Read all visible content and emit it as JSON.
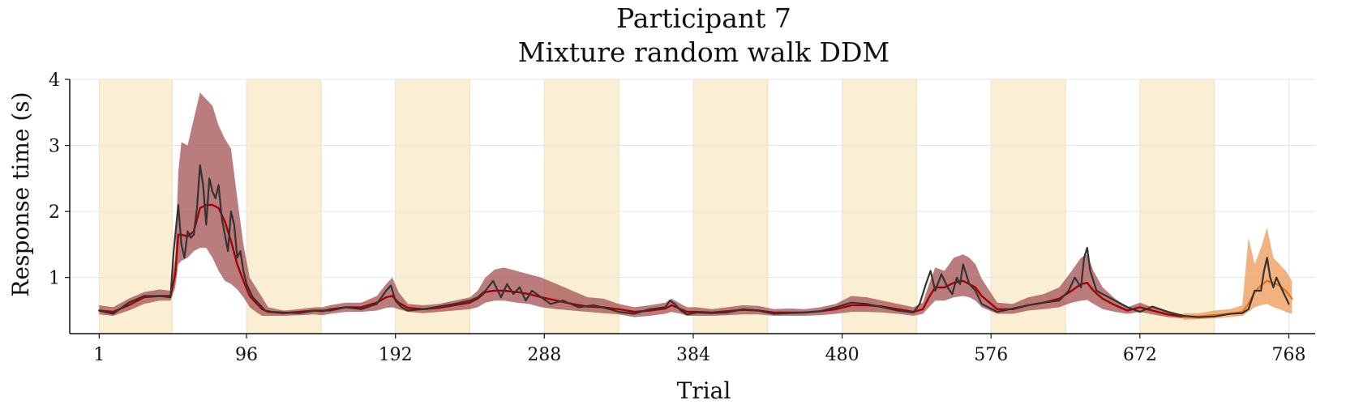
{
  "chart_data": {
    "type": "line",
    "title": [
      "Participant 7",
      "Mixture random walk DDM"
    ],
    "xlabel": "Trial",
    "ylabel": "Response time (s)",
    "xlim": [
      -18,
      785
    ],
    "ylim": [
      0.15,
      4.0
    ],
    "x_ticks": [
      1,
      96,
      192,
      288,
      384,
      480,
      576,
      672,
      768
    ],
    "y_ticks": [
      1,
      2,
      3,
      4
    ],
    "grid": true,
    "shaded_blocks": [
      [
        1,
        48
      ],
      [
        96,
        144
      ],
      [
        192,
        240
      ],
      [
        288,
        336
      ],
      [
        384,
        432
      ],
      [
        480,
        528
      ],
      [
        576,
        624
      ],
      [
        672,
        720
      ]
    ],
    "colors": {
      "block_shading": "#fbefd3",
      "fit_band": "#a35050",
      "fit_mean": "#a60000",
      "observed": "#333333",
      "prediction_band": "#f0a46a",
      "prediction_mean": "#e8731c",
      "grid": "#e6e6e6"
    },
    "series": [
      {
        "kind": "band",
        "color_key": "fit_band",
        "x": [
          1,
          10,
          20,
          30,
          40,
          47,
          50,
          52,
          54,
          58,
          62,
          66,
          70,
          74,
          78,
          82,
          86,
          90,
          94,
          98,
          102,
          106,
          110,
          120,
          130,
          140,
          145,
          150,
          160,
          170,
          180,
          186,
          190,
          194,
          200,
          210,
          220,
          230,
          240,
          245,
          250,
          256,
          262,
          270,
          278,
          286,
          296,
          306,
          316,
          326,
          336,
          346,
          356,
          366,
          370,
          376,
          380,
          386,
          396,
          406,
          416,
          426,
          436,
          446,
          456,
          466,
          476,
          486,
          496,
          506,
          516,
          526,
          532,
          536,
          540,
          546,
          552,
          558,
          562,
          566,
          570,
          580,
          590,
          600,
          610,
          620,
          628,
          634,
          638,
          642,
          648,
          656,
          664,
          672,
          680,
          690,
          700,
          710
        ],
        "upper": [
          0.58,
          0.55,
          0.68,
          0.78,
          0.82,
          0.8,
          1.3,
          2.6,
          3.05,
          3.0,
          3.4,
          3.8,
          3.7,
          3.6,
          3.3,
          3.1,
          2.95,
          2.2,
          1.5,
          1.0,
          0.85,
          0.7,
          0.55,
          0.5,
          0.52,
          0.55,
          0.55,
          0.58,
          0.62,
          0.62,
          0.72,
          0.9,
          1.0,
          0.78,
          0.6,
          0.58,
          0.6,
          0.65,
          0.7,
          0.8,
          1.0,
          1.12,
          1.15,
          1.1,
          1.05,
          1.0,
          0.9,
          0.8,
          0.7,
          0.68,
          0.6,
          0.55,
          0.58,
          0.62,
          0.68,
          0.6,
          0.55,
          0.55,
          0.52,
          0.55,
          0.58,
          0.57,
          0.52,
          0.53,
          0.52,
          0.55,
          0.6,
          0.72,
          0.7,
          0.65,
          0.6,
          0.55,
          0.62,
          0.9,
          1.15,
          1.1,
          1.3,
          1.35,
          1.3,
          1.2,
          0.98,
          0.62,
          0.6,
          0.7,
          0.75,
          0.85,
          1.1,
          1.3,
          1.35,
          1.1,
          0.85,
          0.68,
          0.55,
          0.62,
          0.55,
          0.48,
          0.44,
          0.42
        ],
        "lower": [
          0.44,
          0.42,
          0.5,
          0.6,
          0.65,
          0.65,
          0.85,
          1.2,
          1.25,
          1.3,
          1.4,
          1.45,
          1.45,
          1.3,
          1.1,
          0.95,
          0.9,
          0.82,
          0.7,
          0.55,
          0.48,
          0.42,
          0.42,
          0.42,
          0.43,
          0.44,
          0.43,
          0.45,
          0.48,
          0.48,
          0.5,
          0.54,
          0.55,
          0.52,
          0.48,
          0.46,
          0.48,
          0.5,
          0.52,
          0.55,
          0.62,
          0.65,
          0.65,
          0.62,
          0.6,
          0.55,
          0.52,
          0.5,
          0.48,
          0.46,
          0.44,
          0.4,
          0.42,
          0.45,
          0.48,
          0.45,
          0.42,
          0.42,
          0.42,
          0.43,
          0.44,
          0.44,
          0.42,
          0.42,
          0.42,
          0.43,
          0.45,
          0.48,
          0.48,
          0.47,
          0.45,
          0.42,
          0.45,
          0.55,
          0.65,
          0.65,
          0.7,
          0.72,
          0.7,
          0.65,
          0.55,
          0.45,
          0.45,
          0.5,
          0.52,
          0.55,
          0.62,
          0.65,
          0.66,
          0.6,
          0.52,
          0.48,
          0.45,
          0.48,
          0.44,
          0.4,
          0.38,
          0.37
        ]
      },
      {
        "kind": "line",
        "color_key": "fit_mean",
        "x": [
          1,
          10,
          20,
          30,
          40,
          47,
          50,
          52,
          54,
          58,
          62,
          66,
          70,
          74,
          78,
          82,
          86,
          90,
          94,
          98,
          102,
          106,
          110,
          120,
          130,
          140,
          145,
          150,
          160,
          170,
          180,
          186,
          190,
          194,
          200,
          210,
          220,
          230,
          240,
          245,
          250,
          256,
          262,
          270,
          278,
          286,
          296,
          306,
          316,
          326,
          336,
          346,
          356,
          366,
          370,
          376,
          380,
          386,
          396,
          406,
          416,
          426,
          436,
          446,
          456,
          466,
          476,
          486,
          496,
          506,
          516,
          526,
          532,
          536,
          540,
          546,
          552,
          558,
          562,
          566,
          570,
          580,
          590,
          600,
          610,
          620,
          628,
          634,
          638,
          642,
          648,
          656,
          664,
          672,
          680,
          690,
          700,
          710
        ],
        "y": [
          0.5,
          0.48,
          0.58,
          0.7,
          0.72,
          0.72,
          1.05,
          1.65,
          1.65,
          1.62,
          1.7,
          2.05,
          2.1,
          2.1,
          2.05,
          1.85,
          1.55,
          1.2,
          0.95,
          0.72,
          0.62,
          0.52,
          0.48,
          0.46,
          0.48,
          0.5,
          0.49,
          0.52,
          0.55,
          0.55,
          0.62,
          0.7,
          0.72,
          0.62,
          0.54,
          0.52,
          0.54,
          0.58,
          0.62,
          0.68,
          0.78,
          0.8,
          0.8,
          0.78,
          0.75,
          0.7,
          0.65,
          0.6,
          0.56,
          0.55,
          0.52,
          0.48,
          0.5,
          0.53,
          0.58,
          0.52,
          0.48,
          0.48,
          0.47,
          0.49,
          0.51,
          0.5,
          0.47,
          0.47,
          0.47,
          0.49,
          0.52,
          0.58,
          0.58,
          0.56,
          0.52,
          0.48,
          0.52,
          0.7,
          0.85,
          0.85,
          0.92,
          0.95,
          0.9,
          0.85,
          0.72,
          0.52,
          0.52,
          0.58,
          0.62,
          0.68,
          0.8,
          0.9,
          0.92,
          0.8,
          0.68,
          0.58,
          0.5,
          0.55,
          0.5,
          0.44,
          0.41,
          0.39
        ]
      },
      {
        "kind": "band",
        "color_key": "prediction_band",
        "x": [
          700,
          710,
          720,
          730,
          738,
          742,
          746,
          750,
          754,
          758,
          762,
          766,
          770
        ],
        "upper": [
          0.46,
          0.46,
          0.5,
          0.52,
          0.58,
          1.6,
          1.2,
          1.45,
          1.75,
          1.3,
          1.2,
          1.1,
          0.95
        ],
        "lower": [
          0.36,
          0.37,
          0.38,
          0.4,
          0.42,
          0.48,
          0.55,
          0.58,
          0.6,
          0.55,
          0.52,
          0.48,
          0.45
        ]
      },
      {
        "kind": "line",
        "color_key": "prediction_mean",
        "x": [
          700,
          710,
          720,
          730,
          738,
          742,
          746,
          750,
          754,
          758,
          762,
          766,
          770
        ],
        "y": [
          0.4,
          0.41,
          0.43,
          0.45,
          0.48,
          0.6,
          0.78,
          0.88,
          0.95,
          0.92,
          0.88,
          0.8,
          0.68
        ]
      },
      {
        "kind": "line",
        "color_key": "observed",
        "x": [
          1,
          10,
          20,
          30,
          40,
          47,
          49,
          52,
          54,
          56,
          58,
          60,
          62,
          64,
          66,
          68,
          70,
          72,
          74,
          76,
          78,
          80,
          82,
          84,
          86,
          88,
          90,
          92,
          94,
          96,
          100,
          104,
          108,
          112,
          120,
          130,
          140,
          150,
          160,
          170,
          180,
          186,
          189,
          192,
          196,
          200,
          210,
          220,
          230,
          240,
          245,
          250,
          255,
          260,
          264,
          268,
          272,
          276,
          280,
          286,
          292,
          300,
          310,
          320,
          330,
          336,
          346,
          356,
          366,
          369,
          372,
          376,
          380,
          386,
          396,
          406,
          416,
          426,
          436,
          446,
          456,
          466,
          476,
          486,
          496,
          506,
          516,
          526,
          530,
          534,
          537,
          540,
          544,
          548,
          551,
          554,
          556,
          558,
          562,
          566,
          570,
          580,
          590,
          600,
          610,
          620,
          626,
          630,
          634,
          636,
          638,
          640,
          644,
          648,
          656,
          664,
          672,
          680,
          690,
          700,
          710,
          720,
          730,
          738,
          742,
          746,
          750,
          752,
          754,
          756,
          758,
          760,
          764,
          768
        ],
        "y": [
          0.5,
          0.45,
          0.62,
          0.72,
          0.72,
          0.7,
          1.4,
          2.1,
          1.5,
          1.3,
          1.7,
          1.6,
          1.65,
          2.05,
          2.7,
          2.4,
          1.8,
          2.5,
          2.3,
          2.2,
          2.4,
          1.9,
          1.65,
          1.4,
          2.0,
          1.8,
          1.3,
          1.4,
          1.1,
          0.9,
          0.7,
          0.6,
          0.5,
          0.48,
          0.47,
          0.46,
          0.5,
          0.5,
          0.55,
          0.52,
          0.6,
          0.8,
          0.88,
          0.65,
          0.55,
          0.5,
          0.52,
          0.56,
          0.6,
          0.65,
          0.7,
          0.8,
          0.95,
          0.7,
          0.9,
          0.75,
          0.85,
          0.65,
          0.8,
          0.7,
          0.6,
          0.65,
          0.55,
          0.58,
          0.52,
          0.48,
          0.45,
          0.52,
          0.55,
          0.65,
          0.6,
          0.5,
          0.44,
          0.47,
          0.46,
          0.47,
          0.52,
          0.5,
          0.45,
          0.46,
          0.47,
          0.49,
          0.55,
          0.62,
          0.6,
          0.55,
          0.5,
          0.47,
          0.6,
          0.9,
          1.1,
          0.8,
          1.05,
          0.85,
          0.75,
          1.0,
          0.9,
          1.2,
          0.9,
          0.8,
          0.6,
          0.48,
          0.53,
          0.58,
          0.62,
          0.65,
          0.8,
          1.0,
          0.85,
          1.3,
          1.45,
          1.1,
          0.8,
          0.75,
          0.65,
          0.55,
          0.48,
          0.56,
          0.48,
          0.42,
          0.4,
          0.41,
          0.45,
          0.46,
          0.52,
          0.8,
          0.8,
          1.1,
          1.3,
          1.0,
          0.85,
          1.0,
          0.8,
          0.6
        ]
      }
    ]
  }
}
